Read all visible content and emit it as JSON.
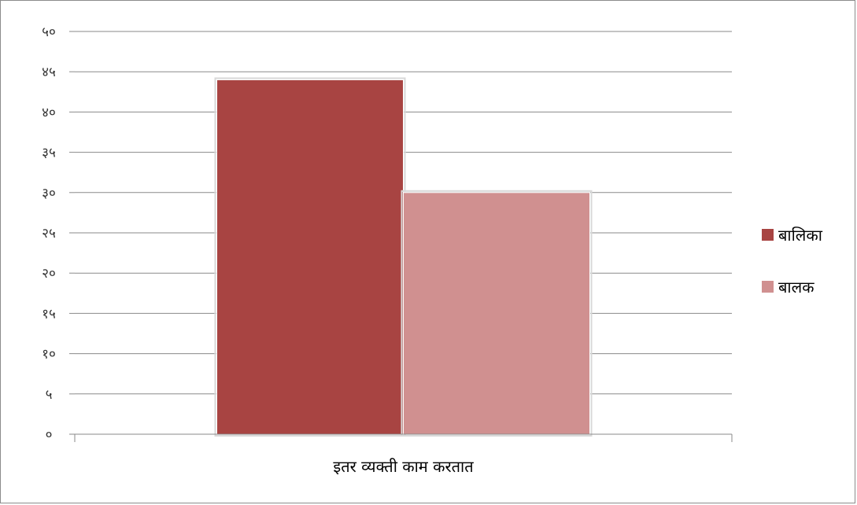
{
  "chart_data": {
    "type": "bar",
    "categories": [
      "इतर व्यक्ती काम करतात"
    ],
    "series": [
      {
        "name": "बालिका",
        "values": [
          44
        ],
        "color": "#A84442"
      },
      {
        "name": "बालक",
        "values": [
          30
        ],
        "color": "#D09090"
      }
    ],
    "ylim": [
      0,
      50
    ],
    "ytick_values": [
      0,
      5,
      10,
      15,
      20,
      25,
      30,
      35,
      40,
      45,
      50
    ],
    "ytick_labels": [
      "०",
      "५",
      "१०",
      "१५",
      "२०",
      "२५",
      "३०",
      "३५",
      "४०",
      "४५",
      "५०"
    ],
    "grid": true,
    "legend_position": "right",
    "title": "",
    "xlabel": "",
    "ylabel": ""
  }
}
